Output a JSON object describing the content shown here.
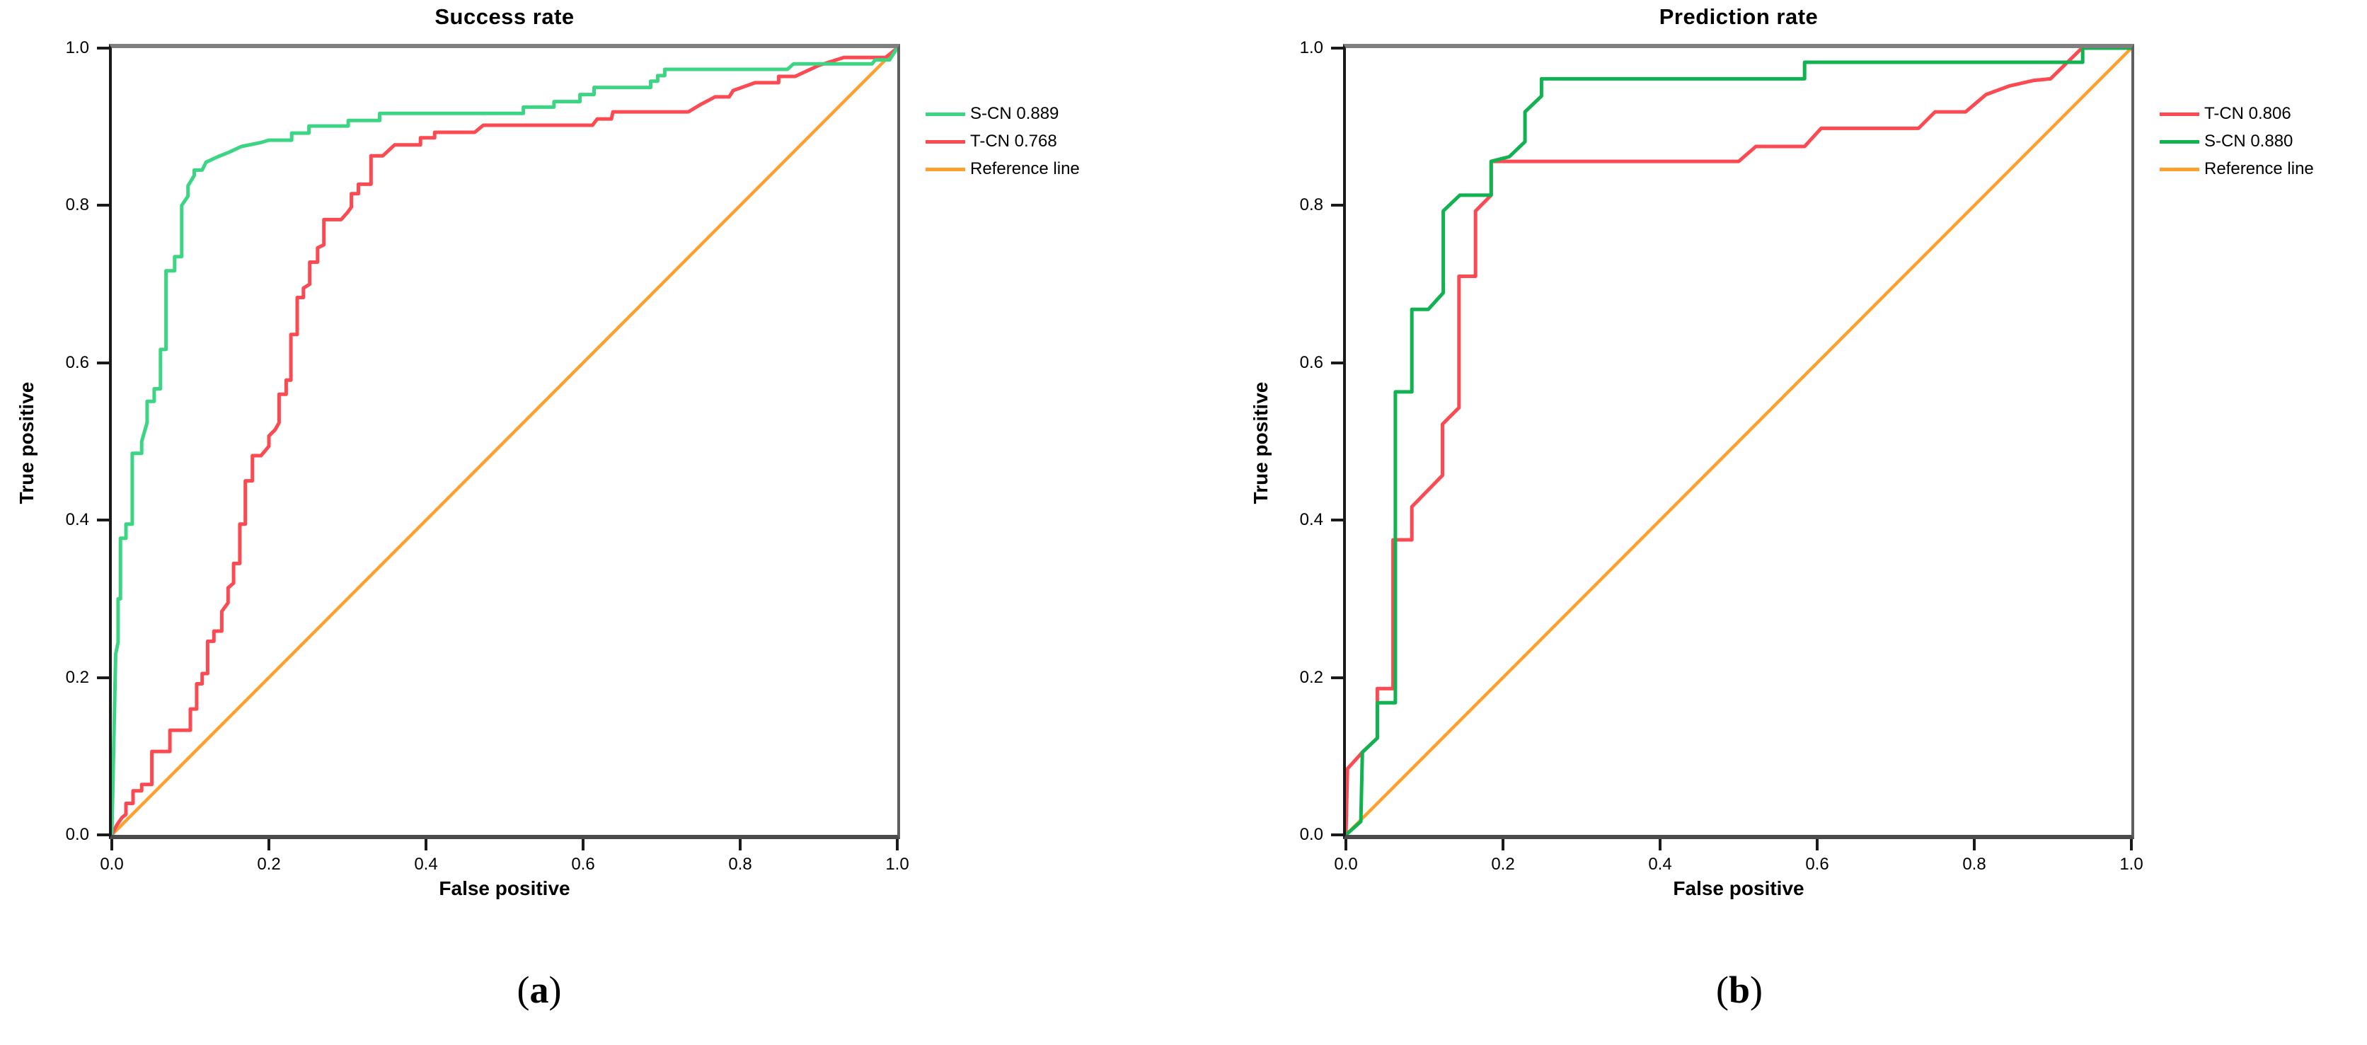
{
  "page": {
    "background": "#ffffff"
  },
  "chart_data": [
    {
      "type": "line",
      "title": "Success rate",
      "xlabel": "False positive",
      "ylabel": "True positive",
      "caption": "a",
      "xlim": [
        0,
        1
      ],
      "ylim": [
        0,
        1
      ],
      "grid": false,
      "legend_position": "outside-right-top",
      "x_ticks": [
        "0.0",
        "0.2",
        "0.4",
        "0.6",
        "0.8",
        "1.0"
      ],
      "y_ticks": [
        "0.0",
        "0.2",
        "0.4",
        "0.6",
        "0.8",
        "1.0"
      ],
      "legend": [
        {
          "label": "S-CN 0.889",
          "color": "#3cd584"
        },
        {
          "label": "T-CN 0.768",
          "color": "#fb4a51"
        },
        {
          "label": "Reference line",
          "color": "#ffa02c"
        }
      ],
      "series": [
        {
          "name": "S-CN",
          "auc": "0.889",
          "color": "#3cd584",
          "z": 2,
          "width": 5,
          "points": [
            [
              0,
              0
            ],
            [
              0.005,
              0.23
            ],
            [
              0.008,
              0.245
            ],
            [
              0.008,
              0.3
            ],
            [
              0.011,
              0.3
            ],
            [
              0.011,
              0.377
            ],
            [
              0.018,
              0.377
            ],
            [
              0.018,
              0.395
            ],
            [
              0.026,
              0.395
            ],
            [
              0.026,
              0.485
            ],
            [
              0.038,
              0.485
            ],
            [
              0.038,
              0.5
            ],
            [
              0.045,
              0.524
            ],
            [
              0.045,
              0.551
            ],
            [
              0.054,
              0.551
            ],
            [
              0.054,
              0.567
            ],
            [
              0.062,
              0.567
            ],
            [
              0.062,
              0.617
            ],
            [
              0.069,
              0.617
            ],
            [
              0.069,
              0.717
            ],
            [
              0.08,
              0.717
            ],
            [
              0.08,
              0.735
            ],
            [
              0.089,
              0.735
            ],
            [
              0.089,
              0.8
            ],
            [
              0.097,
              0.812
            ],
            [
              0.097,
              0.825
            ],
            [
              0.105,
              0.838
            ],
            [
              0.105,
              0.845
            ],
            [
              0.115,
              0.845
            ],
            [
              0.12,
              0.855
            ],
            [
              0.135,
              0.862
            ],
            [
              0.15,
              0.868
            ],
            [
              0.165,
              0.875
            ],
            [
              0.19,
              0.88
            ],
            [
              0.2,
              0.883
            ],
            [
              0.229,
              0.883
            ],
            [
              0.229,
              0.892
            ],
            [
              0.251,
              0.892
            ],
            [
              0.251,
              0.901
            ],
            [
              0.301,
              0.901
            ],
            [
              0.301,
              0.908
            ],
            [
              0.341,
              0.908
            ],
            [
              0.341,
              0.917
            ],
            [
              0.524,
              0.917
            ],
            [
              0.524,
              0.925
            ],
            [
              0.563,
              0.925
            ],
            [
              0.563,
              0.932
            ],
            [
              0.596,
              0.932
            ],
            [
              0.596,
              0.941
            ],
            [
              0.614,
              0.941
            ],
            [
              0.614,
              0.95
            ],
            [
              0.686,
              0.95
            ],
            [
              0.686,
              0.958
            ],
            [
              0.695,
              0.958
            ],
            [
              0.695,
              0.965
            ],
            [
              0.704,
              0.965
            ],
            [
              0.704,
              0.973
            ],
            [
              0.86,
              0.973
            ],
            [
              0.868,
              0.98
            ],
            [
              0.968,
              0.98
            ],
            [
              0.972,
              0.985
            ],
            [
              0.99,
              0.985
            ],
            [
              1,
              1
            ]
          ]
        },
        {
          "name": "T-CN",
          "auc": "0.768",
          "color": "#fb4a51",
          "z": 1,
          "width": 5,
          "points": [
            [
              0,
              0
            ],
            [
              0.006,
              0.012
            ],
            [
              0.013,
              0.022
            ],
            [
              0.018,
              0.026
            ],
            [
              0.018,
              0.04
            ],
            [
              0.027,
              0.04
            ],
            [
              0.027,
              0.056
            ],
            [
              0.038,
              0.056
            ],
            [
              0.038,
              0.064
            ],
            [
              0.051,
              0.064
            ],
            [
              0.051,
              0.106
            ],
            [
              0.074,
              0.106
            ],
            [
              0.074,
              0.133
            ],
            [
              0.1,
              0.133
            ],
            [
              0.1,
              0.16
            ],
            [
              0.108,
              0.16
            ],
            [
              0.108,
              0.192
            ],
            [
              0.115,
              0.192
            ],
            [
              0.115,
              0.205
            ],
            [
              0.122,
              0.205
            ],
            [
              0.122,
              0.246
            ],
            [
              0.13,
              0.246
            ],
            [
              0.13,
              0.259
            ],
            [
              0.14,
              0.259
            ],
            [
              0.14,
              0.284
            ],
            [
              0.148,
              0.295
            ],
            [
              0.148,
              0.314
            ],
            [
              0.155,
              0.32
            ],
            [
              0.155,
              0.345
            ],
            [
              0.163,
              0.345
            ],
            [
              0.163,
              0.395
            ],
            [
              0.17,
              0.395
            ],
            [
              0.17,
              0.45
            ],
            [
              0.179,
              0.45
            ],
            [
              0.179,
              0.482
            ],
            [
              0.19,
              0.482
            ],
            [
              0.2,
              0.494
            ],
            [
              0.2,
              0.507
            ],
            [
              0.208,
              0.515
            ],
            [
              0.213,
              0.524
            ],
            [
              0.213,
              0.56
            ],
            [
              0.222,
              0.56
            ],
            [
              0.222,
              0.578
            ],
            [
              0.228,
              0.578
            ],
            [
              0.228,
              0.636
            ],
            [
              0.236,
              0.636
            ],
            [
              0.236,
              0.683
            ],
            [
              0.244,
              0.683
            ],
            [
              0.244,
              0.695
            ],
            [
              0.252,
              0.7
            ],
            [
              0.252,
              0.728
            ],
            [
              0.262,
              0.728
            ],
            [
              0.262,
              0.746
            ],
            [
              0.27,
              0.75
            ],
            [
              0.27,
              0.782
            ],
            [
              0.292,
              0.782
            ],
            [
              0.3,
              0.791
            ],
            [
              0.305,
              0.798
            ],
            [
              0.305,
              0.815
            ],
            [
              0.314,
              0.815
            ],
            [
              0.314,
              0.827
            ],
            [
              0.33,
              0.827
            ],
            [
              0.33,
              0.863
            ],
            [
              0.345,
              0.863
            ],
            [
              0.36,
              0.877
            ],
            [
              0.393,
              0.877
            ],
            [
              0.393,
              0.886
            ],
            [
              0.411,
              0.886
            ],
            [
              0.411,
              0.893
            ],
            [
              0.462,
              0.893
            ],
            [
              0.473,
              0.902
            ],
            [
              0.612,
              0.902
            ],
            [
              0.618,
              0.91
            ],
            [
              0.636,
              0.91
            ],
            [
              0.638,
              0.919
            ],
            [
              0.734,
              0.919
            ],
            [
              0.749,
              0.928
            ],
            [
              0.768,
              0.938
            ],
            [
              0.786,
              0.938
            ],
            [
              0.791,
              0.946
            ],
            [
              0.819,
              0.956
            ],
            [
              0.849,
              0.956
            ],
            [
              0.849,
              0.964
            ],
            [
              0.87,
              0.964
            ],
            [
              0.9,
              0.978
            ],
            [
              0.932,
              0.988
            ],
            [
              0.985,
              0.988
            ],
            [
              1,
              1
            ]
          ]
        },
        {
          "name": "Reference line",
          "color": "#ffa02c",
          "z": 0,
          "width": 4.5,
          "points": [
            [
              0,
              0
            ],
            [
              1,
              1
            ]
          ]
        }
      ]
    },
    {
      "type": "line",
      "title": "Prediction rate",
      "xlabel": "False positive",
      "ylabel": "True positive",
      "caption": "b",
      "xlim": [
        0,
        1
      ],
      "ylim": [
        0,
        1
      ],
      "grid": false,
      "legend_position": "outside-right-top",
      "x_ticks": [
        "0.0",
        "0.2",
        "0.4",
        "0.6",
        "0.8",
        "1.0"
      ],
      "y_ticks": [
        "0.0",
        "0.2",
        "0.4",
        "0.6",
        "0.8",
        "1.0"
      ],
      "legend": [
        {
          "label": "T-CN 0.806",
          "color": "#fb4a51"
        },
        {
          "label": "S-CN 0.880",
          "color": "#10b251"
        },
        {
          "label": "Reference line",
          "color": "#ffa02c"
        }
      ],
      "series": [
        {
          "name": "T-CN",
          "auc": "0.806",
          "color": "#fb4a51",
          "z": 1,
          "width": 5,
          "points": [
            [
              0,
              0
            ],
            [
              0.002,
              0.084
            ],
            [
              0.021,
              0.105
            ],
            [
              0.04,
              0.123
            ],
            [
              0.04,
              0.186
            ],
            [
              0.06,
              0.186
            ],
            [
              0.06,
              0.375
            ],
            [
              0.084,
              0.375
            ],
            [
              0.084,
              0.417
            ],
            [
              0.123,
              0.457
            ],
            [
              0.123,
              0.522
            ],
            [
              0.144,
              0.543
            ],
            [
              0.144,
              0.71
            ],
            [
              0.165,
              0.71
            ],
            [
              0.165,
              0.793
            ],
            [
              0.185,
              0.813
            ],
            [
              0.185,
              0.856
            ],
            [
              0.5,
              0.856
            ],
            [
              0.522,
              0.875
            ],
            [
              0.584,
              0.875
            ],
            [
              0.605,
              0.898
            ],
            [
              0.729,
              0.898
            ],
            [
              0.75,
              0.919
            ],
            [
              0.789,
              0.919
            ],
            [
              0.815,
              0.941
            ],
            [
              0.845,
              0.952
            ],
            [
              0.876,
              0.959
            ],
            [
              0.897,
              0.961
            ],
            [
              0.937,
              1
            ],
            [
              1,
              1
            ]
          ]
        },
        {
          "name": "S-CN",
          "auc": "0.880",
          "color": "#10b251",
          "z": 2,
          "width": 5,
          "points": [
            [
              0,
              0
            ],
            [
              0.019,
              0.017
            ],
            [
              0.021,
              0.105
            ],
            [
              0.04,
              0.123
            ],
            [
              0.04,
              0.168
            ],
            [
              0.063,
              0.168
            ],
            [
              0.063,
              0.563
            ],
            [
              0.084,
              0.563
            ],
            [
              0.084,
              0.668
            ],
            [
              0.105,
              0.668
            ],
            [
              0.124,
              0.689
            ],
            [
              0.124,
              0.793
            ],
            [
              0.145,
              0.813
            ],
            [
              0.185,
              0.813
            ],
            [
              0.185,
              0.856
            ],
            [
              0.208,
              0.862
            ],
            [
              0.228,
              0.881
            ],
            [
              0.228,
              0.919
            ],
            [
              0.249,
              0.939
            ],
            [
              0.249,
              0.961
            ],
            [
              0.584,
              0.961
            ],
            [
              0.584,
              0.982
            ],
            [
              0.938,
              0.982
            ],
            [
              0.938,
              1
            ],
            [
              1,
              1
            ]
          ]
        },
        {
          "name": "Reference line",
          "color": "#ffa02c",
          "z": 0,
          "width": 4.5,
          "points": [
            [
              0,
              0
            ],
            [
              1,
              1
            ]
          ]
        }
      ]
    }
  ]
}
